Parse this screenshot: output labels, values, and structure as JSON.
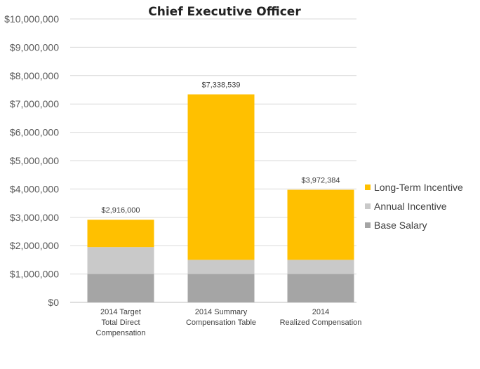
{
  "chart_data": {
    "type": "bar",
    "stacked": true,
    "title": "Chief Executive Officer",
    "xlabel": "",
    "ylabel": "",
    "ylim": [
      0,
      10000000
    ],
    "ytick_step": 1000000,
    "ytick_labels": [
      "$0",
      "$1,000,000",
      "$2,000,000",
      "$3,000,000",
      "$4,000,000",
      "$5,000,000",
      "$6,000,000",
      "$7,000,000",
      "$8,000,000",
      "$9,000,000",
      "$10,000,000"
    ],
    "grid": true,
    "legend_position": "right",
    "categories": [
      [
        "2014 Target",
        "Total Direct",
        "Compensation"
      ],
      [
        "2014 Summary",
        "Compensation Table"
      ],
      [
        "2014",
        "Realized Compensation"
      ]
    ],
    "series": [
      {
        "name": "Base Salary",
        "color": "#a5a5a5",
        "values": [
          1000000,
          1000000,
          1000000
        ]
      },
      {
        "name": "Annual Incentive",
        "color": "#c9c9c9",
        "values": [
          950000,
          500000,
          500000
        ]
      },
      {
        "name": "Long-Term Incentive",
        "color": "#ffc000",
        "values": [
          966000,
          5838539,
          2472384
        ]
      }
    ],
    "totals": [
      2916000,
      7338539,
      3972384
    ],
    "total_labels": [
      "$2,916,000",
      "$7,338,539",
      "$3,972,384"
    ],
    "legend_order": [
      "Long-Term Incentive",
      "Annual Incentive",
      "Base Salary"
    ]
  }
}
